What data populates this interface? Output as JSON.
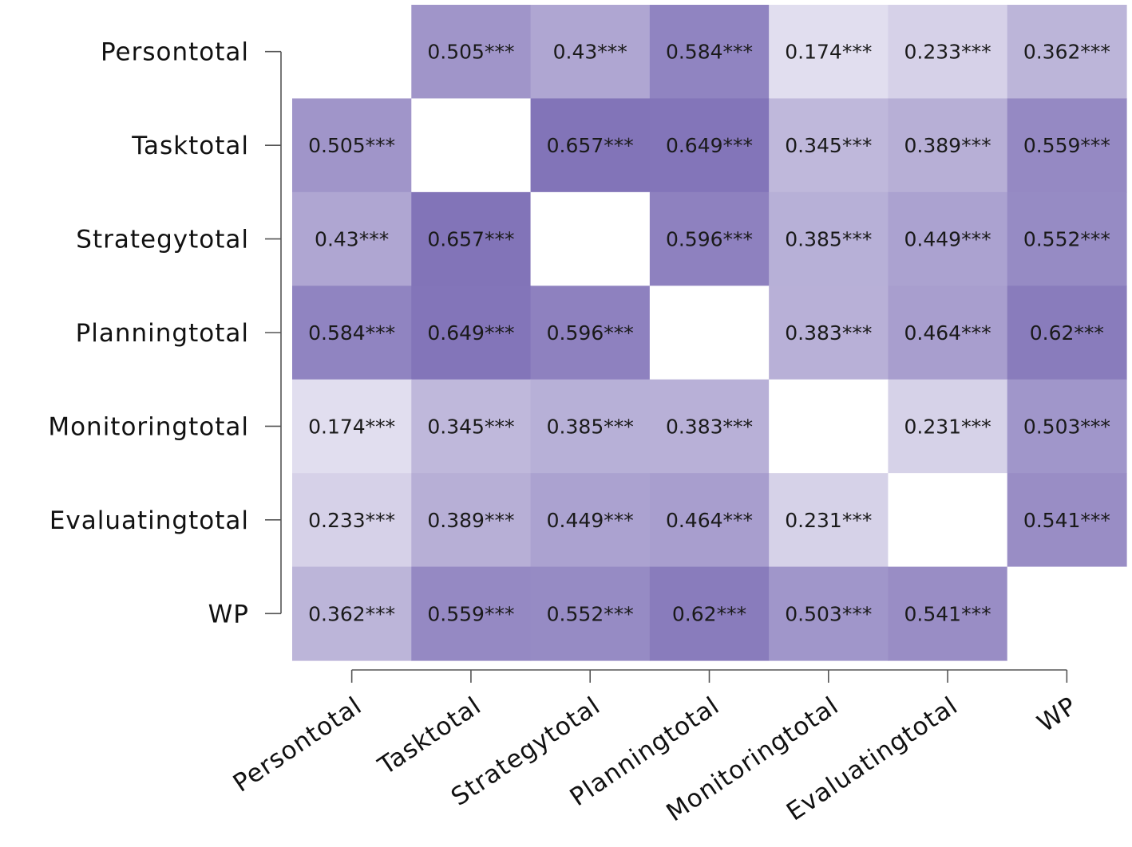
{
  "chart_data": {
    "type": "heatmap",
    "title": "",
    "xlabel": "",
    "ylabel": "",
    "row_labels": [
      "Persontotal",
      "Tasktotal",
      "Strategytotal",
      "Planningtotal",
      "Monitoringtotal",
      "Evaluatingtotal",
      "WP"
    ],
    "col_labels": [
      "Persontotal",
      "Tasktotal",
      "Strategytotal",
      "Planningtotal",
      "Monitoringtotal",
      "Evaluatingtotal",
      "WP"
    ],
    "values": [
      [
        null,
        0.505,
        0.43,
        0.584,
        0.174,
        0.233,
        0.362
      ],
      [
        0.505,
        null,
        0.657,
        0.649,
        0.345,
        0.389,
        0.559
      ],
      [
        0.43,
        0.657,
        null,
        0.596,
        0.385,
        0.449,
        0.552
      ],
      [
        0.584,
        0.649,
        0.596,
        null,
        0.383,
        0.464,
        0.62
      ],
      [
        0.174,
        0.345,
        0.385,
        0.383,
        null,
        0.231,
        0.503
      ],
      [
        0.233,
        0.389,
        0.449,
        0.464,
        0.231,
        null,
        0.541
      ],
      [
        0.362,
        0.559,
        0.552,
        0.62,
        0.503,
        0.541,
        null
      ]
    ],
    "cell_labels": [
      [
        "",
        "0.505***",
        "0.43***",
        "0.584***",
        "0.174***",
        "0.233***",
        "0.362***"
      ],
      [
        "0.505***",
        "",
        "0.657***",
        "0.649***",
        "0.345***",
        "0.389***",
        "0.559***"
      ],
      [
        "0.43***",
        "0.657***",
        "",
        "0.596***",
        "0.385***",
        "0.449***",
        "0.552***"
      ],
      [
        "0.584***",
        "0.649***",
        "0.596***",
        "",
        "0.383***",
        "0.464***",
        "0.62***"
      ],
      [
        "0.174***",
        "0.345***",
        "0.385***",
        "0.383***",
        "",
        "0.231***",
        "0.503***"
      ],
      [
        "0.233***",
        "0.389***",
        "0.449***",
        "0.464***",
        "0.231***",
        "",
        "0.541***"
      ],
      [
        "0.362***",
        "0.559***",
        "0.552***",
        "0.62***",
        "0.503***",
        "0.541***",
        ""
      ]
    ],
    "color_low": "#e2dfef",
    "color_high": "#8173b8",
    "value_range": [
      0.17,
      0.66
    ],
    "diagonal_color": "#ffffff",
    "text_color": "#1a1a1a",
    "axis_color": "#555555"
  }
}
